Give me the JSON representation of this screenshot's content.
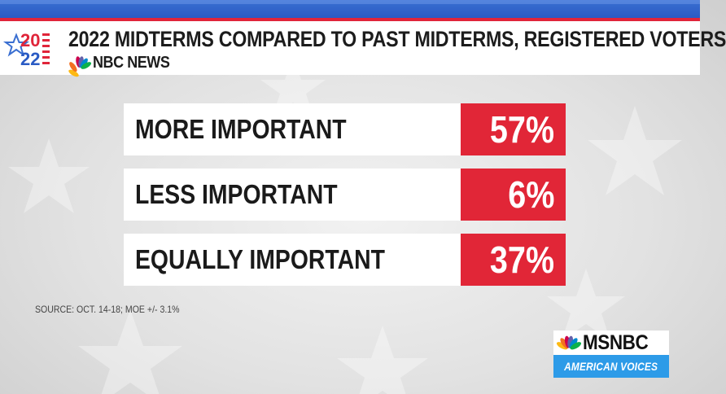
{
  "header": {
    "title": "2022 MIDTERMS COMPARED TO PAST MIDTERMS, REGISTERED VOTERS",
    "logo_year_top": "20",
    "logo_year_bottom": "22",
    "network": "NBC NEWS"
  },
  "chart_data": {
    "type": "table",
    "rows": [
      {
        "label": "MORE IMPORTANT",
        "value": 57,
        "display": "57%"
      },
      {
        "label": "LESS IMPORTANT",
        "value": 6,
        "display": "6%"
      },
      {
        "label": "EQUALLY IMPORTANT",
        "value": 37,
        "display": "37%"
      }
    ],
    "unit": "%"
  },
  "footer": {
    "source": "SOURCE: OCT. 14-18; MOE +/- 3.1%"
  },
  "bug": {
    "brand": "MSNBC",
    "show": "AMERICAN VOICES"
  },
  "colors": {
    "accent_red": "#e12637",
    "stripe_blue": "#2a5bc4",
    "show_blue": "#2d9be8"
  },
  "icons": {
    "network_logo": "nbc-peacock-icon",
    "logo_star": "star-icon"
  }
}
